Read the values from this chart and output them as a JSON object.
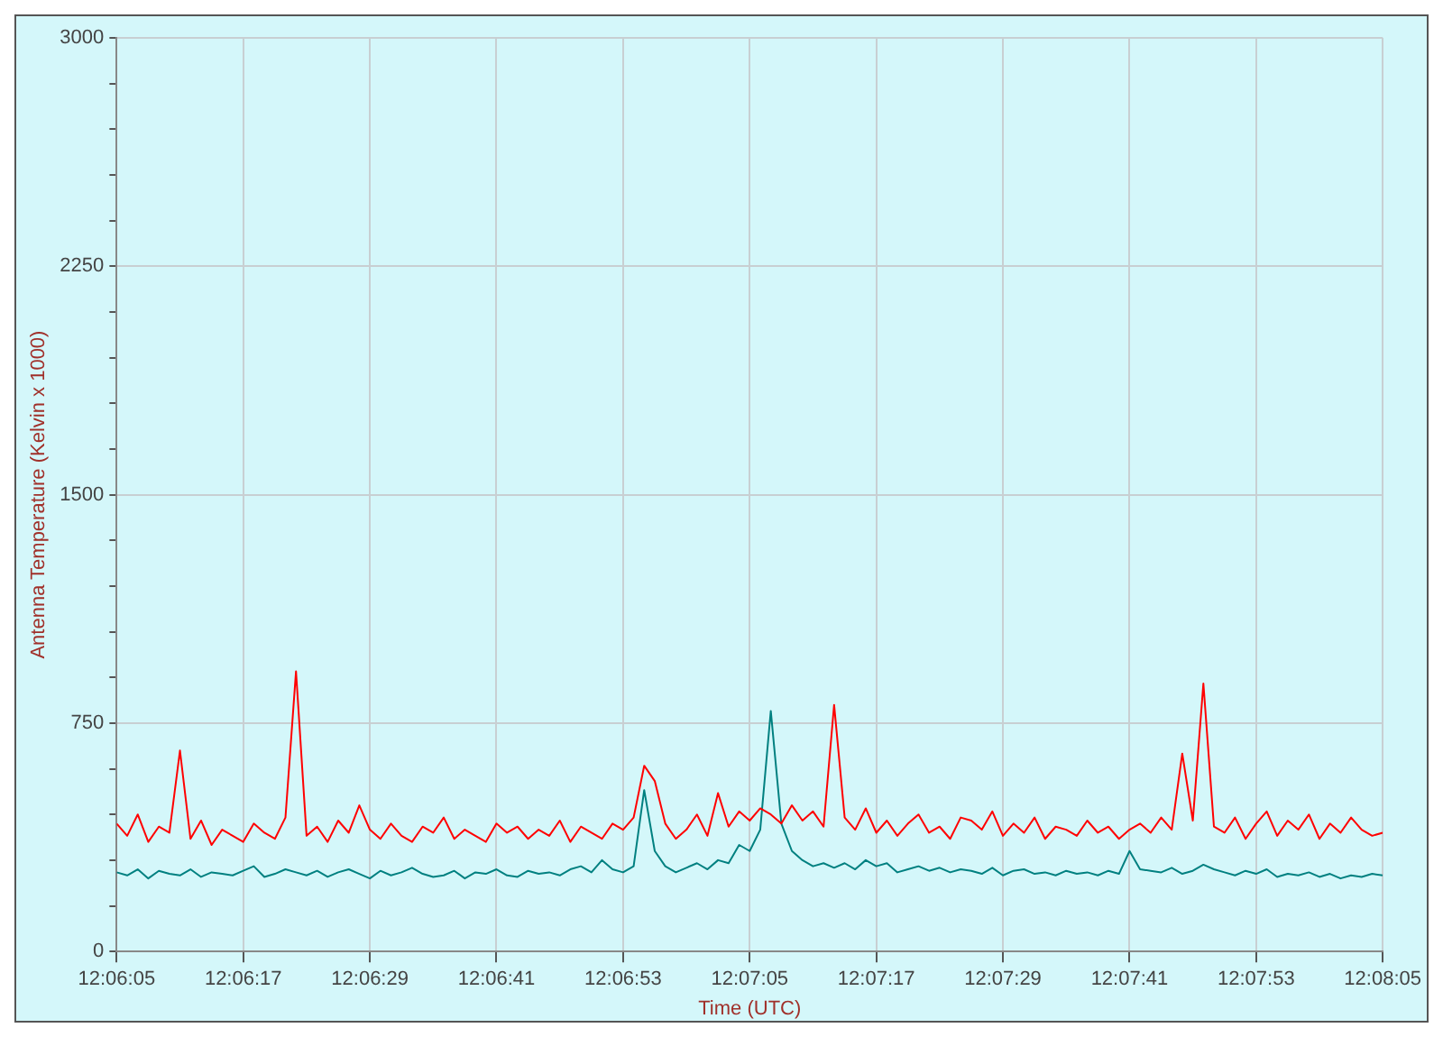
{
  "chart_data": {
    "type": "line",
    "xlabel": "Time (UTC)",
    "ylabel": "Antenna Temperature (Kelvin x 1000)",
    "x": [
      12.101389,
      12.101667,
      12.101944,
      12.102222,
      12.1025,
      12.102778,
      12.103056,
      12.103333,
      12.103611,
      12.103889,
      12.104167,
      12.104444,
      12.104722,
      12.105,
      12.105278,
      12.105556,
      12.105833,
      12.106111,
      12.106389,
      12.106667,
      12.106944,
      12.107222,
      12.1075,
      12.107778,
      12.108056,
      12.108333,
      12.108611,
      12.108889,
      12.109167,
      12.109444,
      12.109722,
      12.11,
      12.110278,
      12.110556,
      12.110833,
      12.111111,
      12.111389,
      12.111667,
      12.111944,
      12.112222,
      12.1125,
      12.112778,
      12.113056,
      12.113333,
      12.113611,
      12.113889,
      12.114167,
      12.114444,
      12.114722,
      12.115,
      12.115278,
      12.115556,
      12.115833,
      12.116111,
      12.116389,
      12.116667,
      12.116944,
      12.117222,
      12.1175,
      12.117778,
      12.118056,
      12.118333,
      12.118611,
      12.118889,
      12.119167,
      12.119444,
      12.119722,
      12.12,
      12.120278,
      12.120556,
      12.120833,
      12.121111,
      12.121389,
      12.121667,
      12.121944,
      12.122222,
      12.1225,
      12.122778,
      12.123056,
      12.123333,
      12.123611,
      12.123889,
      12.124167,
      12.124444,
      12.124722,
      12.125,
      12.125278,
      12.125556,
      12.125833,
      12.126111,
      12.126389,
      12.126667,
      12.126944,
      12.127222,
      12.1275,
      12.127778,
      12.128056,
      12.128333,
      12.128611,
      12.128889,
      12.129167,
      12.129444,
      12.129722,
      12.13,
      12.130278,
      12.130556,
      12.130833,
      12.131111,
      12.131389,
      12.131667,
      12.131944,
      12.132222,
      12.1325,
      12.132778,
      12.133056,
      12.133333,
      12.133611,
      12.133889,
      12.134167,
      12.134444,
      12.134722
    ],
    "series": [
      {
        "color": "#ff0000",
        "values": [
          420,
          380,
          450,
          360,
          410,
          390,
          660,
          370,
          430,
          350,
          400,
          380,
          360,
          420,
          390,
          370,
          440,
          920,
          380,
          410,
          360,
          430,
          390,
          480,
          400,
          370,
          420,
          380,
          360,
          410,
          390,
          440,
          370,
          400,
          380,
          360,
          420,
          390,
          410,
          370,
          400,
          380,
          430,
          360,
          410,
          390,
          370,
          420,
          400,
          440,
          610,
          560,
          420,
          370,
          400,
          450,
          380,
          520,
          410,
          460,
          430,
          470,
          450,
          420,
          480,
          430,
          460,
          410,
          810,
          440,
          400,
          470,
          390,
          430,
          380,
          420,
          450,
          390,
          410,
          370,
          440,
          430,
          400,
          460,
          380,
          420,
          390,
          440,
          370,
          410,
          400,
          380,
          430,
          390,
          410,
          370,
          400,
          420,
          390,
          440,
          400,
          650,
          430,
          880,
          410,
          390,
          440,
          370,
          420,
          460,
          380,
          430,
          400,
          450,
          370,
          420,
          390,
          440,
          400,
          380,
          390
        ]
      },
      {
        "color": "#008080",
        "values": [
          260,
          250,
          270,
          240,
          265,
          255,
          250,
          270,
          245,
          260,
          255,
          250,
          265,
          280,
          245,
          255,
          270,
          260,
          250,
          265,
          245,
          260,
          270,
          255,
          240,
          265,
          250,
          260,
          275,
          255,
          245,
          250,
          265,
          240,
          260,
          255,
          270,
          250,
          245,
          265,
          255,
          260,
          250,
          270,
          280,
          260,
          300,
          270,
          260,
          280,
          530,
          330,
          280,
          260,
          275,
          290,
          270,
          300,
          290,
          350,
          330,
          400,
          790,
          420,
          330,
          300,
          280,
          290,
          275,
          290,
          270,
          300,
          280,
          290,
          260,
          270,
          280,
          265,
          275,
          260,
          270,
          265,
          255,
          275,
          250,
          265,
          270,
          255,
          260,
          250,
          265,
          255,
          260,
          250,
          265,
          255,
          330,
          270,
          265,
          260,
          275,
          255,
          265,
          285,
          270,
          260,
          250,
          265,
          255,
          270,
          245,
          255,
          250,
          260,
          245,
          255,
          240,
          250,
          245,
          255,
          250
        ]
      }
    ],
    "xlim": [
      12.101389,
      12.134722
    ],
    "xticks": [
      {
        "value": 12.101389,
        "label": "12:06:05"
      },
      {
        "value": 12.104722,
        "label": "12:06:17"
      },
      {
        "value": 12.108056,
        "label": "12:06:29"
      },
      {
        "value": 12.111389,
        "label": "12:06:41"
      },
      {
        "value": 12.114722,
        "label": "12:06:53"
      },
      {
        "value": 12.118056,
        "label": "12:07:05"
      },
      {
        "value": 12.121389,
        "label": "12:07:17"
      },
      {
        "value": 12.124722,
        "label": "12:07:29"
      },
      {
        "value": 12.128056,
        "label": "12:07:41"
      },
      {
        "value": 12.131389,
        "label": "12:07:53"
      },
      {
        "value": 12.134722,
        "label": "12:08:05"
      }
    ],
    "ylim": [
      0,
      3000
    ],
    "yticks": [
      0,
      {
        "value": 150,
        "label": null
      },
      {
        "value": 300,
        "label": null
      },
      {
        "value": 450,
        "label": null
      },
      {
        "value": 600,
        "label": null
      },
      750,
      {
        "value": 900,
        "label": null
      },
      {
        "value": 1050,
        "label": null
      },
      {
        "value": 1200,
        "label": null
      },
      {
        "value": 1350,
        "label": null
      },
      1500,
      {
        "value": 1650,
        "label": null
      },
      {
        "value": 1800,
        "label": null
      },
      {
        "value": 1950,
        "label": null
      },
      {
        "value": 2100,
        "label": null
      },
      2250,
      {
        "value": 2400,
        "label": null
      },
      {
        "value": 2550,
        "label": null
      },
      {
        "value": 2700,
        "label": null
      },
      {
        "value": 2850,
        "label": null
      },
      3000
    ],
    "grid": true,
    "legend": false
  }
}
